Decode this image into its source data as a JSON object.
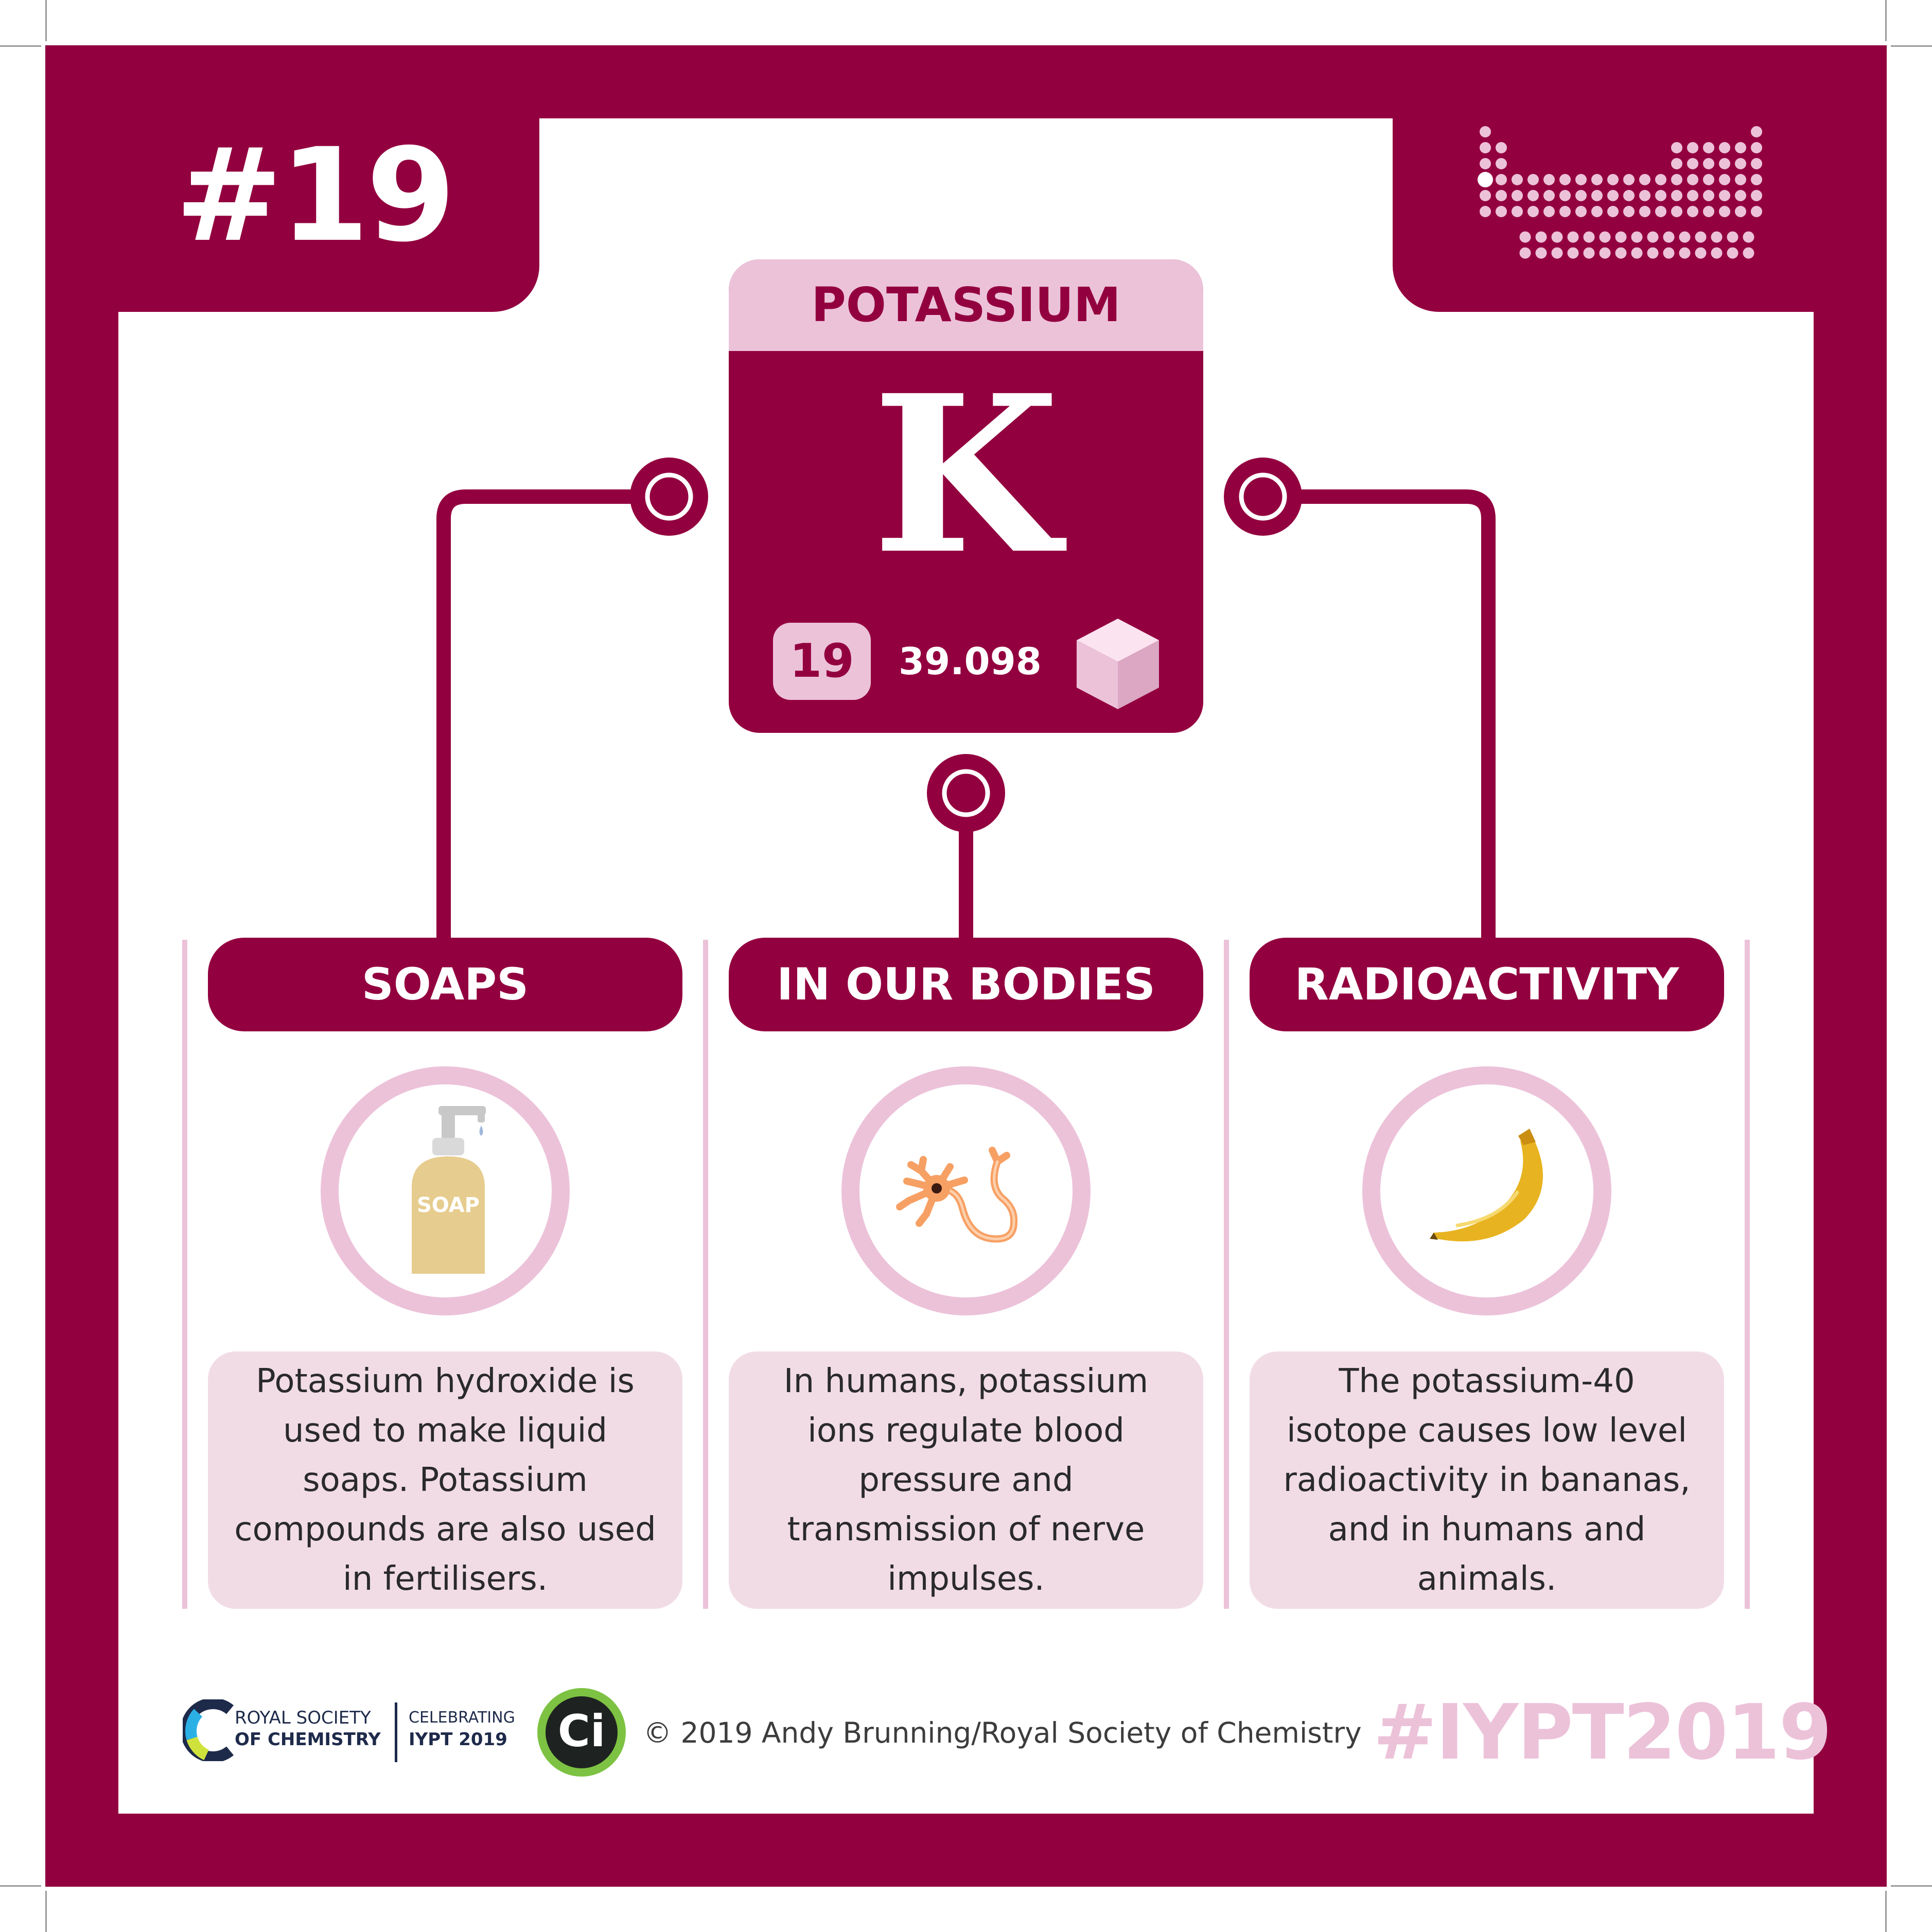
{
  "element": {
    "number_badge": "#19",
    "name": "POTASSIUM",
    "symbol": "K",
    "atomic_number": "19",
    "atomic_mass": "39.098"
  },
  "icons": {
    "periodic_table": "periodic-table-icon",
    "crystal": "cube-icon",
    "soap": "soap-dispenser-icon",
    "neuron": "neuron-icon",
    "banana": "banana-icon"
  },
  "sections": [
    {
      "title": "SOAPS",
      "icon_label": "SOAP",
      "text": "Potassium hydroxide is used to make liquid soaps. Potassium compounds are also used in fertilisers."
    },
    {
      "title": "IN OUR BODIES",
      "text": "In humans, potassium ions regulate blood pressure and transmission of nerve impulses."
    },
    {
      "title": "RADIOACTIVITY",
      "text": "The potassium-40 isotope causes low level radioactivity in bananas, and in humans and animals."
    }
  ],
  "footer": {
    "rsc_line1": "ROYAL SOCIETY",
    "rsc_line2": "OF CHEMISTRY",
    "iypt_line1": "CELEBRATING",
    "iypt_line2": "IYPT 2019",
    "ci_mark": "Ci",
    "credit": "© 2019 Andy Brunning/Royal Society of Chemistry",
    "hashtag": "#IYPT2019"
  },
  "colors": {
    "primary": "#93003f",
    "light_pink": "#ecc2d9",
    "pale_pink": "#f1dce6",
    "soap": "#e6cc8e",
    "neuron": "#f7a064",
    "banana": "#e8b320"
  }
}
